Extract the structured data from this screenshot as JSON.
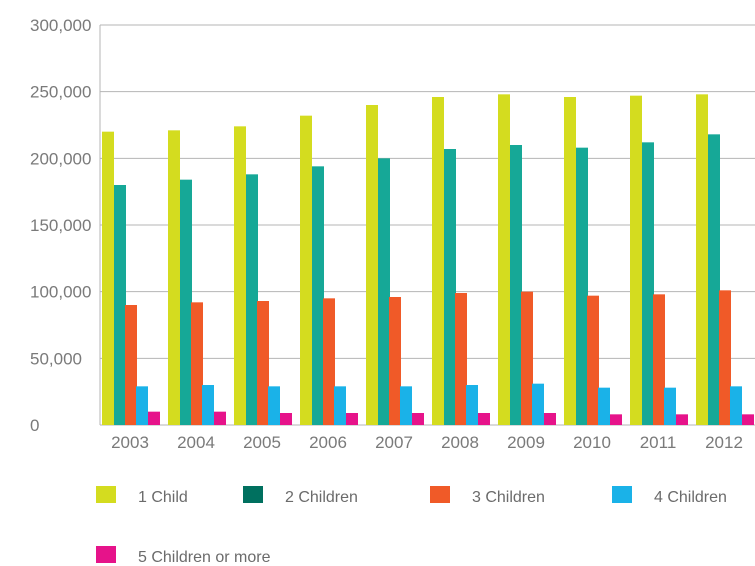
{
  "chart_data": {
    "type": "bar",
    "categories": [
      "2003",
      "2004",
      "2005",
      "2006",
      "2007",
      "2008",
      "2009",
      "2010",
      "2011",
      "2012"
    ],
    "ylim": [
      0,
      300000
    ],
    "yticks": [
      0,
      50000,
      100000,
      150000,
      200000,
      250000,
      300000
    ],
    "ytick_labels": [
      "0",
      "50,000",
      "100,000",
      "150,000",
      "200,000",
      "250,000",
      "300,000"
    ],
    "grid": "horizontal",
    "legend_position": "bottom",
    "series": [
      {
        "name": "1 Child",
        "color": "#d4dc1f",
        "values": [
          220000,
          221000,
          224000,
          232000,
          240000,
          246000,
          248000,
          246000,
          247000,
          248000
        ]
      },
      {
        "name": "2 Children",
        "color": "#16a897",
        "legend_color": "#00705f",
        "values": [
          180000,
          184000,
          188000,
          194000,
          200000,
          207000,
          210000,
          208000,
          212000,
          218000
        ]
      },
      {
        "name": "3 Children",
        "color": "#f05a28",
        "values": [
          90000,
          92000,
          93000,
          95000,
          96000,
          99000,
          100000,
          97000,
          98000,
          101000
        ]
      },
      {
        "name": "4 Children",
        "color": "#1ab2e8",
        "values": [
          29000,
          30000,
          29000,
          29000,
          29000,
          30000,
          31000,
          28000,
          28000,
          29000
        ]
      },
      {
        "name": "5 Children or more",
        "color": "#e6138a",
        "values": [
          10000,
          10000,
          9000,
          9000,
          9000,
          9000,
          9000,
          8000,
          8000,
          8000
        ]
      }
    ]
  }
}
